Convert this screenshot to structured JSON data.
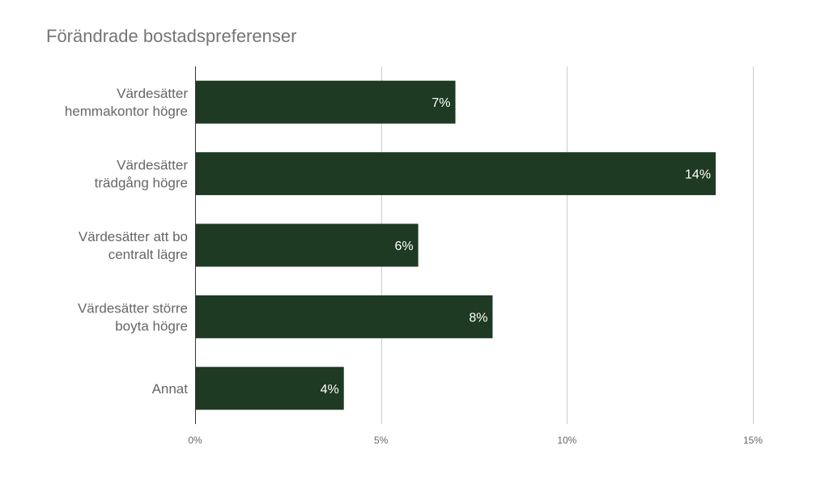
{
  "chart_data": {
    "type": "bar",
    "orientation": "horizontal",
    "title": "Förändrade bostadspreferenser",
    "categories": [
      [
        "Värdesätter",
        "hemmakontor högre"
      ],
      [
        "Värdesätter",
        "trädgång högre"
      ],
      [
        "Värdesätter att bo",
        "centralt lägre"
      ],
      [
        "Värdesätter större",
        "boyta högre"
      ],
      [
        "Annat"
      ]
    ],
    "values": [
      7,
      14,
      6,
      8,
      4
    ],
    "data_labels": [
      "7%",
      "14%",
      "6%",
      "8%",
      "4%"
    ],
    "xlim": [
      0,
      15
    ],
    "xticks": [
      0,
      5,
      10,
      15
    ],
    "xtick_labels": [
      "0%",
      "5%",
      "10%",
      "15%"
    ],
    "grid": "vertical",
    "legend": "none",
    "xlabel": "",
    "ylabel": "",
    "colors": {
      "bar": "#1e3a22",
      "grid": "#cccccc",
      "axis": "#333333",
      "title": "#757575",
      "label": "#666666",
      "data_label": "#ffffff"
    }
  }
}
